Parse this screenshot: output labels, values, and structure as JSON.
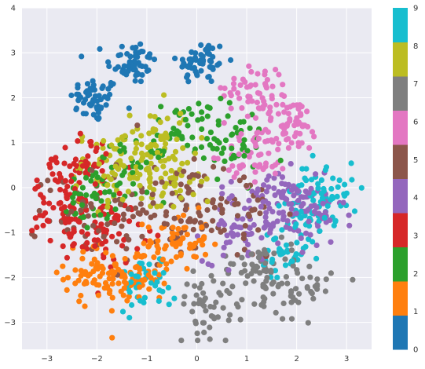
{
  "chart_data": {
    "type": "scatter",
    "title": "",
    "xlabel": "",
    "ylabel": "",
    "xlim": [
      -3.5,
      3.5
    ],
    "ylim": [
      -3.6,
      4.0
    ],
    "xticks": [
      -3,
      -2,
      -1,
      0,
      1,
      2,
      3
    ],
    "yticks": [
      -3,
      -2,
      -1,
      0,
      1,
      2,
      3,
      4
    ],
    "grid": true,
    "background": "#eaeaf2",
    "colorbar": {
      "ticks": [
        "0",
        "1",
        "2",
        "3",
        "4",
        "5",
        "6",
        "7",
        "8",
        "9"
      ],
      "colors": [
        "#1f77b4",
        "#ff7f0e",
        "#2ca02c",
        "#d62728",
        "#9467bd",
        "#8c564b",
        "#e377c2",
        "#7f7f7f",
        "#bcbd22",
        "#17becf"
      ]
    },
    "clusters": [
      {
        "label": 0,
        "centers": [
          [
            -2.05,
            1.95
          ],
          [
            -1.3,
            2.8
          ],
          [
            0.1,
            2.8
          ]
        ],
        "spread": 0.25,
        "n": 160
      },
      {
        "label": 1,
        "centers": [
          [
            -1.2,
            -2.0
          ],
          [
            -0.4,
            -1.2
          ],
          [
            -2.0,
            -1.9
          ]
        ],
        "spread": 0.32,
        "n": 180
      },
      {
        "label": 2,
        "centers": [
          [
            -0.2,
            1.3
          ],
          [
            0.7,
            1.0
          ],
          [
            -1.3,
            0.4
          ],
          [
            -2.1,
            -0.3
          ]
        ],
        "spread": 0.35,
        "n": 160
      },
      {
        "label": 3,
        "centers": [
          [
            -2.6,
            -0.6
          ],
          [
            -2.4,
            0.5
          ],
          [
            -1.8,
            -1.0
          ]
        ],
        "spread": 0.35,
        "n": 170
      },
      {
        "label": 4,
        "centers": [
          [
            1.6,
            -0.3
          ],
          [
            0.9,
            -0.9
          ],
          [
            2.2,
            -0.6
          ]
        ],
        "spread": 0.38,
        "n": 170
      },
      {
        "label": 5,
        "centers": [
          [
            -2.1,
            -0.5
          ],
          [
            -0.4,
            -0.5
          ],
          [
            0.6,
            -0.5
          ]
        ],
        "spread": 0.55,
        "n": 170
      },
      {
        "label": 6,
        "centers": [
          [
            1.9,
            1.4
          ],
          [
            1.2,
            0.7
          ],
          [
            1.2,
            2.2
          ]
        ],
        "spread": 0.32,
        "n": 160
      },
      {
        "label": 7,
        "centers": [
          [
            1.2,
            -1.8
          ],
          [
            2.0,
            -2.2
          ],
          [
            0.3,
            -2.6
          ]
        ],
        "spread": 0.35,
        "n": 150
      },
      {
        "label": 8,
        "centers": [
          [
            -0.7,
            0.2
          ],
          [
            -1.8,
            0.4
          ],
          [
            -0.9,
            1.0
          ]
        ],
        "spread": 0.4,
        "n": 170
      },
      {
        "label": 9,
        "centers": [
          [
            2.3,
            -0.5
          ],
          [
            1.8,
            -1.6
          ],
          [
            -1.0,
            -2.1
          ],
          [
            2.6,
            0.0
          ]
        ],
        "spread": 0.3,
        "n": 160
      }
    ]
  }
}
